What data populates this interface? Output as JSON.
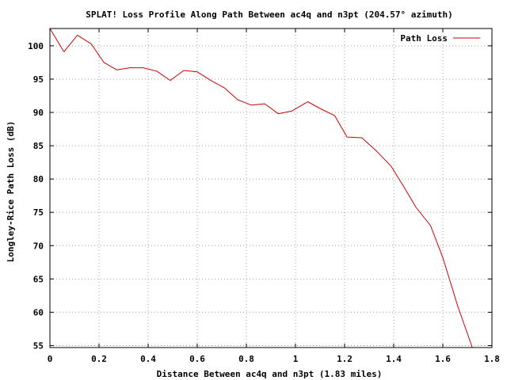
{
  "chart_data": {
    "type": "line",
    "title": "SPLAT! Loss Profile Along Path Between ac4q and n3pt (204.57° azimuth)",
    "xlabel": "Distance Between ac4q and n3pt (1.83 miles)",
    "ylabel": "Longley-Rice Path Loss (dB)",
    "xlim": [
      0,
      1.8
    ],
    "ylim": [
      54.7,
      102.6
    ],
    "x_ticks": [
      0,
      0.2,
      0.4,
      0.6,
      0.8,
      1,
      1.2,
      1.4,
      1.6,
      1.8
    ],
    "x_tick_labels": [
      "0",
      "0.2",
      "0.4",
      "0.6",
      "0.8",
      "1",
      "1.2",
      "1.4",
      "1.6",
      "1.8"
    ],
    "y_ticks": [
      55,
      60,
      65,
      70,
      75,
      80,
      85,
      90,
      95,
      100
    ],
    "y_tick_labels": [
      "55",
      "60",
      "65",
      "70",
      "75",
      "80",
      "85",
      "90",
      "95",
      "100"
    ],
    "grid": true,
    "legend_position": "top-right",
    "series": [
      {
        "name": "Path Loss",
        "color": "#cc0000",
        "x": [
          0.0,
          0.057,
          0.112,
          0.168,
          0.22,
          0.272,
          0.325,
          0.38,
          0.435,
          0.49,
          0.545,
          0.6,
          0.655,
          0.71,
          0.765,
          0.82,
          0.875,
          0.93,
          0.985,
          1.05,
          1.1,
          1.16,
          1.21,
          1.27,
          1.33,
          1.39,
          1.44,
          1.49,
          1.55,
          1.6,
          1.66,
          1.72
        ],
        "y": [
          102.6,
          99.1,
          101.6,
          100.3,
          97.5,
          96.4,
          96.7,
          96.7,
          96.2,
          94.8,
          96.3,
          96.1,
          94.8,
          93.7,
          91.9,
          91.1,
          91.3,
          89.8,
          90.2,
          91.6,
          90.6,
          89.5,
          86.3,
          86.2,
          84.2,
          81.9,
          78.9,
          75.8,
          73.0,
          68.2,
          61.0,
          54.7
        ]
      }
    ]
  }
}
